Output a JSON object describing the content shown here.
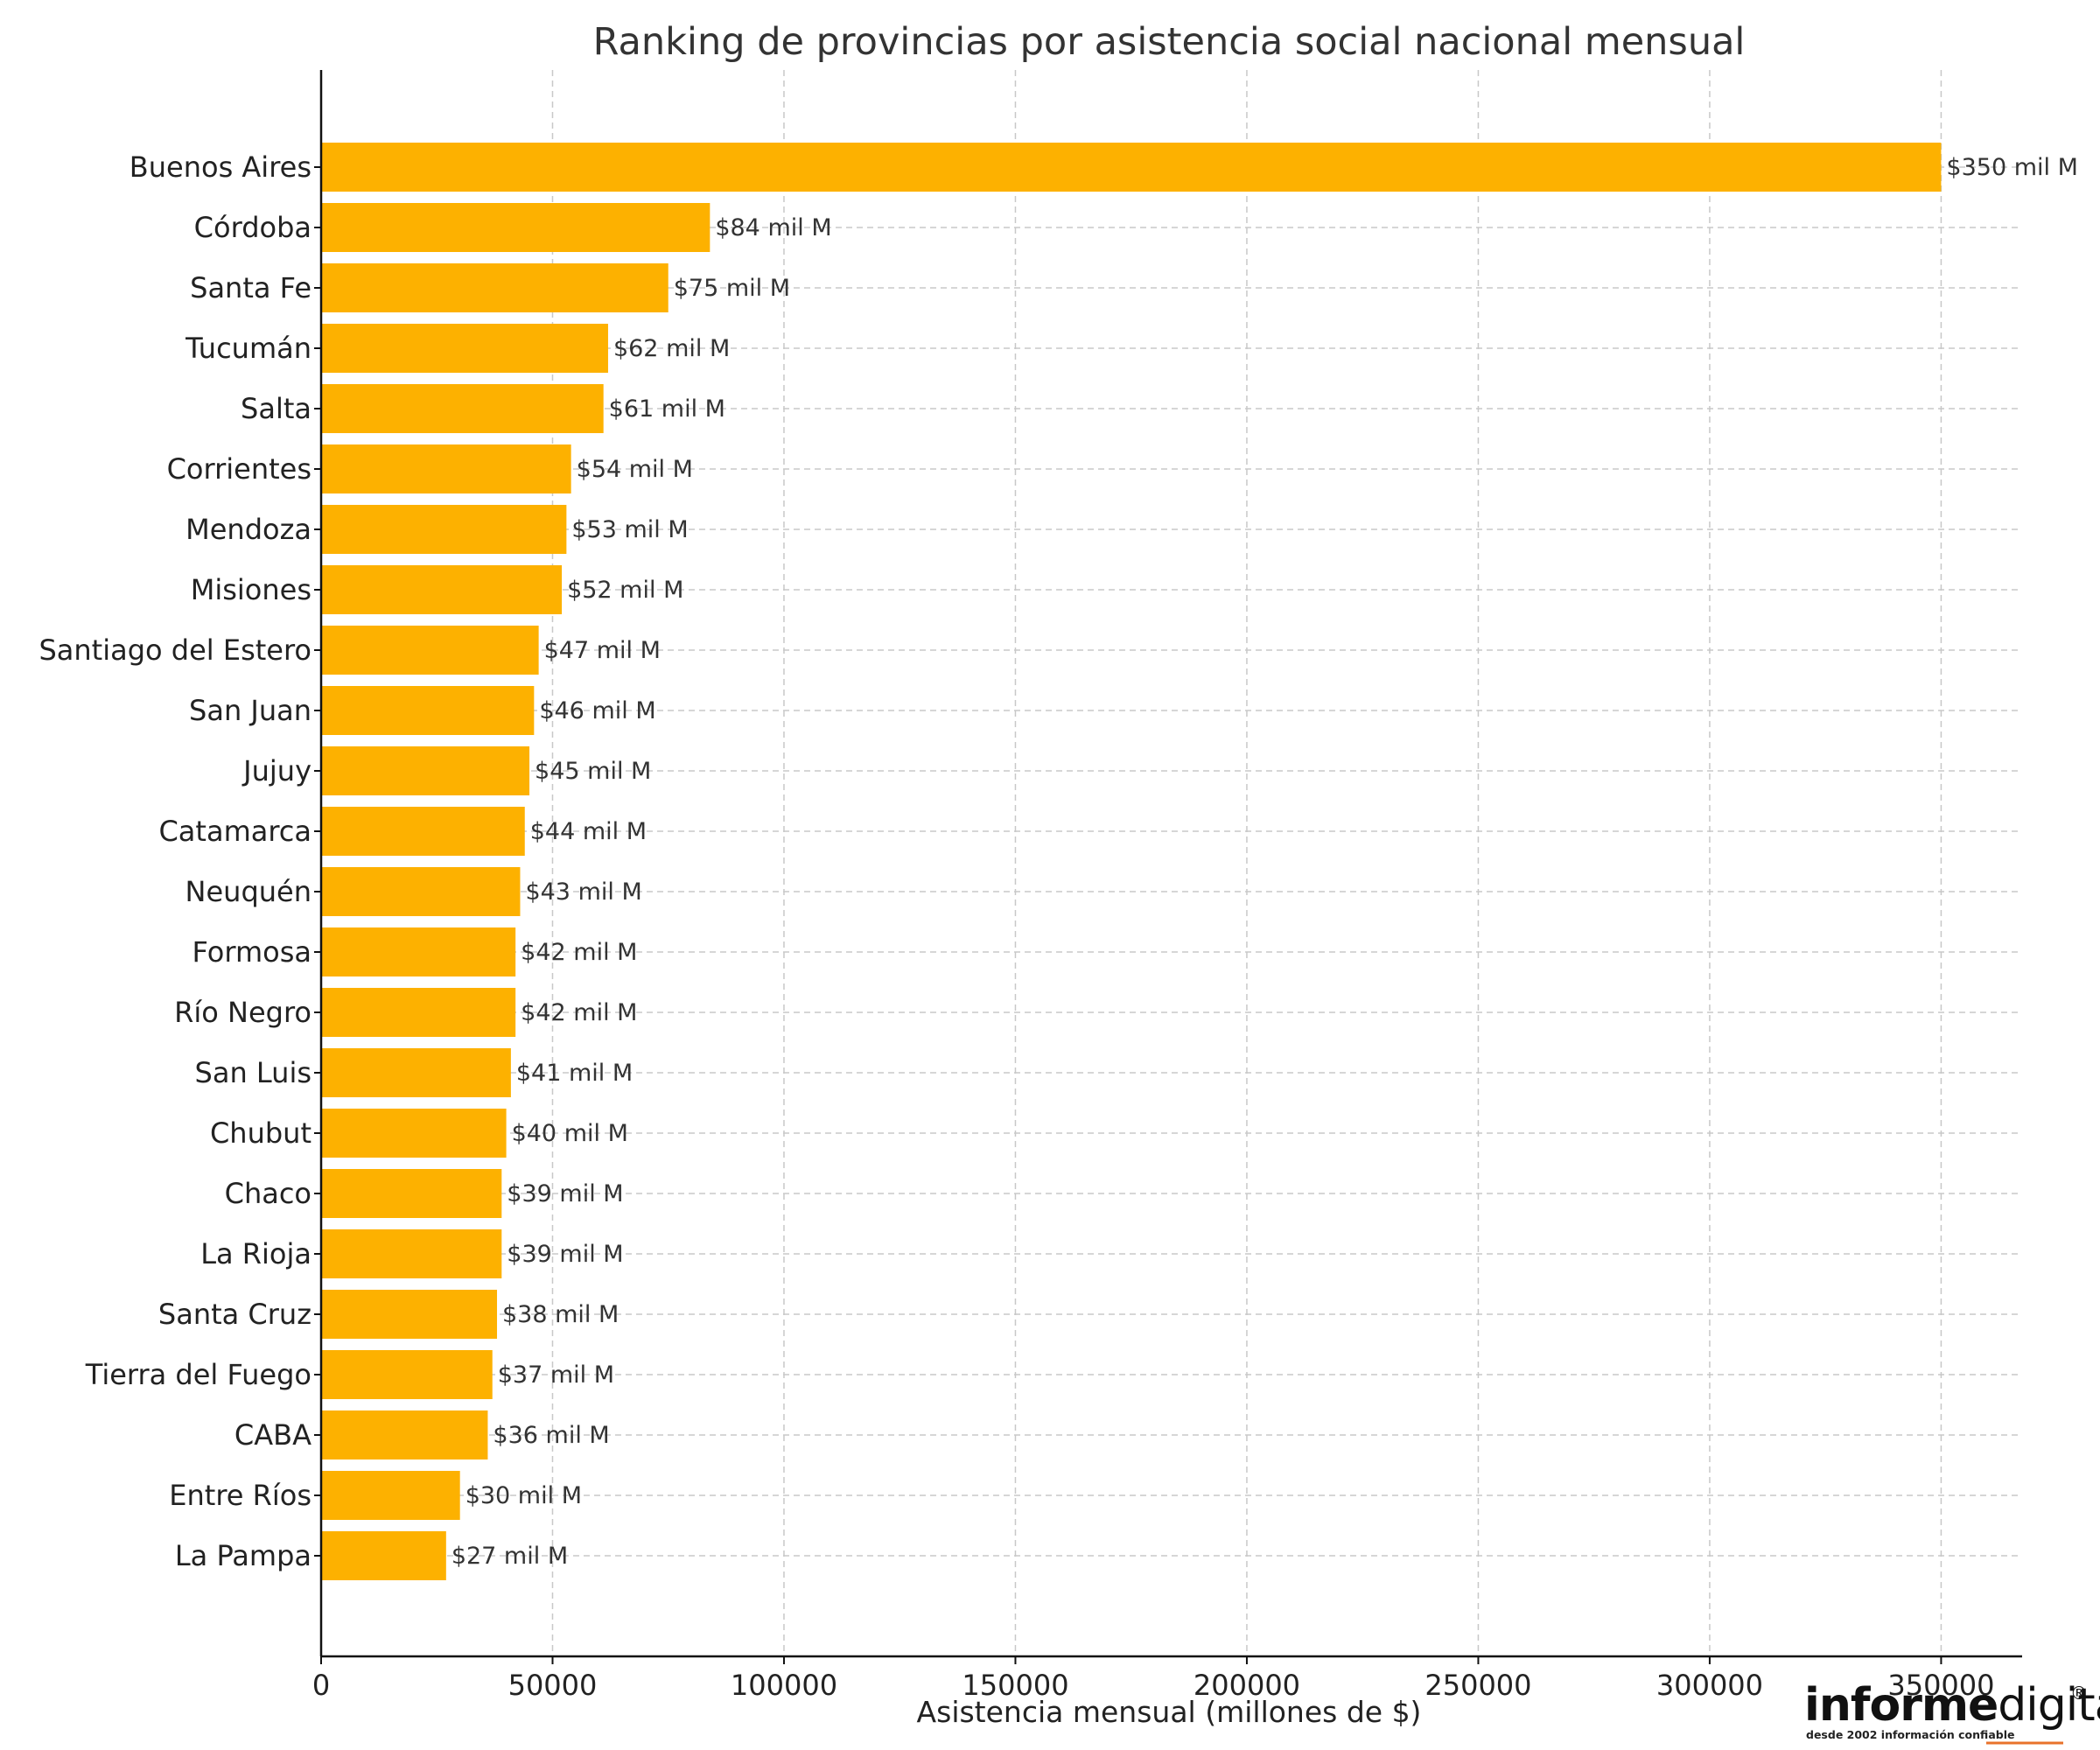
{
  "chart_data": {
    "type": "bar",
    "orientation": "horizontal",
    "title": "Ranking de provincias por asistencia social nacional mensual",
    "xlabel": "Asistencia mensual (millones de $)",
    "ylabel": "",
    "xlim": [
      0,
      367500
    ],
    "xticks": [
      0,
      50000,
      100000,
      150000,
      200000,
      250000,
      300000,
      350000
    ],
    "grid": true,
    "bar_color": "#FDB100",
    "categories": [
      "Buenos Aires",
      "Córdoba",
      "Santa Fe",
      "Tucumán",
      "Salta",
      "Corrientes",
      "Mendoza",
      "Misiones",
      "Santiago del Estero",
      "San Juan",
      "Jujuy",
      "Catamarca",
      "Neuquén",
      "Formosa",
      "Río Negro",
      "San Luis",
      "Chubut",
      "Chaco",
      "La Rioja",
      "Santa Cruz",
      "Tierra del Fuego",
      "CABA",
      "Entre Ríos",
      "La Pampa"
    ],
    "values": [
      350000,
      84000,
      75000,
      62000,
      61000,
      54000,
      53000,
      52000,
      47000,
      46000,
      45000,
      44000,
      43000,
      42000,
      42000,
      41000,
      40000,
      39000,
      39000,
      38000,
      37000,
      36000,
      30000,
      27000
    ],
    "data_labels": [
      "$350 mil M",
      "$84 mil M",
      "$75 mil M",
      "$62 mil M",
      "$61 mil M",
      "$54 mil M",
      "$53 mil M",
      "$52 mil M",
      "$47 mil M",
      "$46 mil M",
      "$45 mil M",
      "$44 mil M",
      "$43 mil M",
      "$42 mil M",
      "$42 mil M",
      "$41 mil M",
      "$40 mil M",
      "$39 mil M",
      "$39 mil M",
      "$38 mil M",
      "$37 mil M",
      "$36 mil M",
      "$30 mil M",
      "$27 mil M"
    ]
  },
  "watermark": {
    "brand_bold": "informe",
    "brand_light": "digital",
    "registered": "®",
    "tagline": "desde 2002 información confiable"
  }
}
